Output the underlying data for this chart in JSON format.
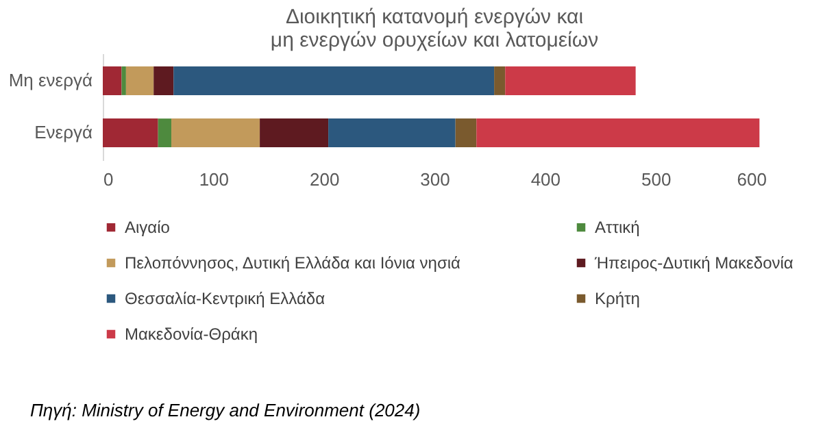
{
  "chart_data": {
    "type": "bar",
    "orientation": "horizontal",
    "stacked": true,
    "title": "Διοικητική κατανομή ενεργών και μη ενεργών ορυχείων και λατομείων",
    "categories": [
      "Μη ενεργά",
      "Ενεργά"
    ],
    "series": [
      {
        "name": "Αιγαίο",
        "color": "#a02834",
        "values": [
          17,
          50
        ]
      },
      {
        "name": "Αττική",
        "color": "#4e8a3e",
        "values": [
          4,
          12
        ]
      },
      {
        "name": "Πελοπόννησος, Δυτική Ελλάδα και Ιόνια νησιά",
        "color": "#c29a5b",
        "values": [
          25,
          80
        ]
      },
      {
        "name": "Ήπειρος-Δυτική Μακεδονία",
        "color": "#5e1a20",
        "values": [
          18,
          62
        ]
      },
      {
        "name": "Θεσσαλία-Κεντρική Ελλάδα",
        "color": "#2c587e",
        "values": [
          290,
          115
        ]
      },
      {
        "name": "Κρήτη",
        "color": "#7a5a2e",
        "values": [
          10,
          19
        ]
      },
      {
        "name": "Μακεδονία-Θράκη",
        "color": "#cc3a48",
        "values": [
          118,
          256
        ]
      }
    ],
    "xlim": [
      0,
      600
    ],
    "xticks": [
      0,
      100,
      200,
      300,
      400,
      500,
      600
    ],
    "grid": false,
    "legend": "bottom",
    "annotations": [
      "Πηγή: Ministry of Energy and Environment (2024)"
    ]
  }
}
